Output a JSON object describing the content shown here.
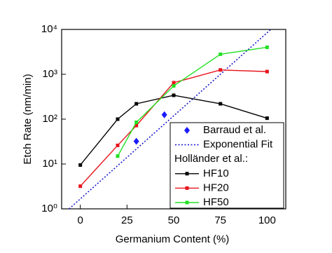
{
  "chart_data": {
    "type": "line",
    "xlabel": "Germanium Content (%)",
    "ylabel": "Etch Rate (nm/min)",
    "xlim": [
      -10,
      110
    ],
    "xticks": [
      0,
      25,
      50,
      75,
      100
    ],
    "ylim": [
      1,
      10000
    ],
    "log_y": true,
    "yticks": [
      {
        "value": 1,
        "label": "10⁰"
      },
      {
        "value": 10,
        "label": "10¹"
      },
      {
        "value": 100,
        "label": "10²"
      },
      {
        "value": 1000,
        "label": "10³"
      },
      {
        "value": 10000,
        "label": "10⁴"
      }
    ],
    "legend_title": "Holländer et al.:",
    "legend_position": "lower right",
    "series": [
      {
        "name": "Barraud et al.",
        "color": "#1a1aff",
        "style": "markers",
        "x": [
          30,
          45
        ],
        "values": [
          32,
          125
        ]
      },
      {
        "name": "Exponential Fit",
        "color": "#1a1acc",
        "style": "dotted",
        "x": [
          -6,
          102
        ],
        "values": [
          1,
          10000
        ]
      },
      {
        "name": "HF10",
        "color": "#000000",
        "style": "line-markers",
        "x": [
          0,
          20,
          30,
          50,
          75,
          100
        ],
        "values": [
          9.5,
          100,
          220,
          340,
          220,
          105
        ]
      },
      {
        "name": "HF20",
        "color": "#e8141c",
        "style": "line-markers",
        "x": [
          0,
          20,
          30,
          50,
          75,
          100
        ],
        "values": [
          3.2,
          26,
          72,
          650,
          1250,
          1150
        ]
      },
      {
        "name": "HF50",
        "color": "#22e022",
        "style": "line-markers",
        "x": [
          20,
          30,
          50,
          75,
          100
        ],
        "values": [
          15,
          85,
          550,
          2800,
          4000
        ]
      }
    ]
  }
}
